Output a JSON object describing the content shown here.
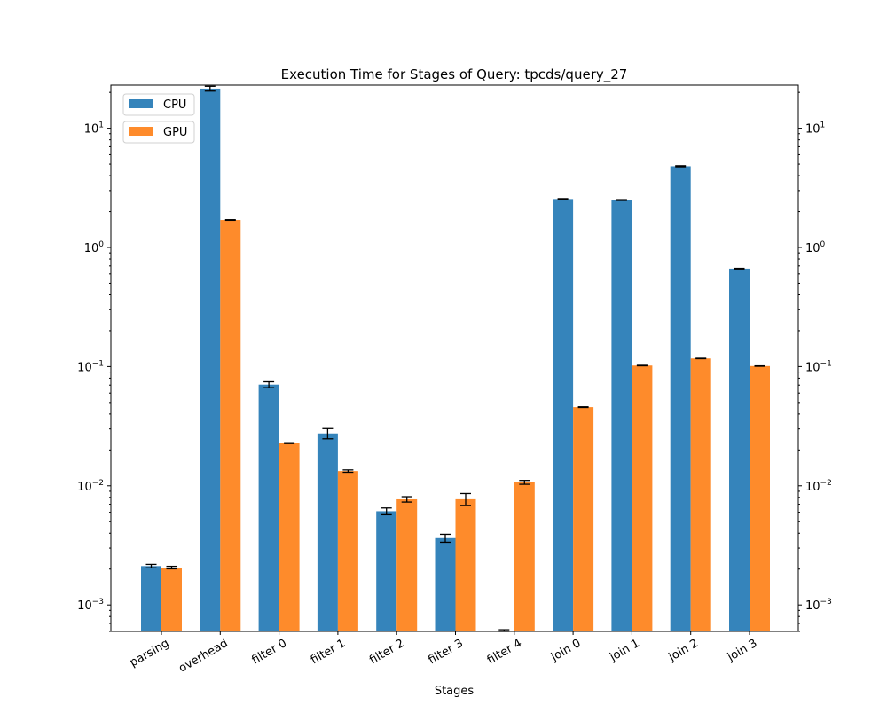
{
  "chart_data": {
    "type": "bar",
    "title": "Execution Time for Stages of Query: tpcds/query_27",
    "xlabel": "Stages",
    "ylabel": "",
    "yscale": "log",
    "ylim": [
      0.0006,
      23
    ],
    "ytick_labels": [
      {
        "value": 0.001,
        "base": "10",
        "exp": "−3"
      },
      {
        "value": 0.01,
        "base": "10",
        "exp": "−2"
      },
      {
        "value": 0.1,
        "base": "10",
        "exp": "−1"
      },
      {
        "value": 1,
        "base": "10",
        "exp": "0"
      },
      {
        "value": 10,
        "base": "10",
        "exp": "1"
      }
    ],
    "secondary_y_axis": true,
    "grid": false,
    "legend_position": "top-left",
    "categories": [
      "parsing",
      "overhead",
      "filter 0",
      "filter 1",
      "filter 2",
      "filter 3",
      "filter 4",
      "join 0",
      "join 1",
      "join 2",
      "join 3"
    ],
    "series": [
      {
        "name": "CPU",
        "color": "#3584bb",
        "values": [
          0.00212,
          21.5,
          0.0706,
          0.0275,
          0.00612,
          0.00364,
          0.00061,
          2.55,
          2.5,
          4.8,
          0.664
        ],
        "errors": [
          7e-05,
          1.0,
          0.004,
          0.0027,
          0.0004,
          0.00028,
          1e-05,
          0.02,
          0.02,
          0.05,
          0.004
        ]
      },
      {
        "name": "GPU",
        "color": "#fe8b2b",
        "values": [
          0.00206,
          1.7,
          0.0228,
          0.0133,
          0.00771,
          0.00772,
          0.0107,
          0.0457,
          0.102,
          0.117,
          0.101
        ],
        "errors": [
          5e-05,
          0.01,
          0.0002,
          0.0003,
          0.0004,
          0.0009,
          0.0004,
          0.0003,
          0.0005,
          0.0005,
          0.0004
        ]
      }
    ]
  }
}
